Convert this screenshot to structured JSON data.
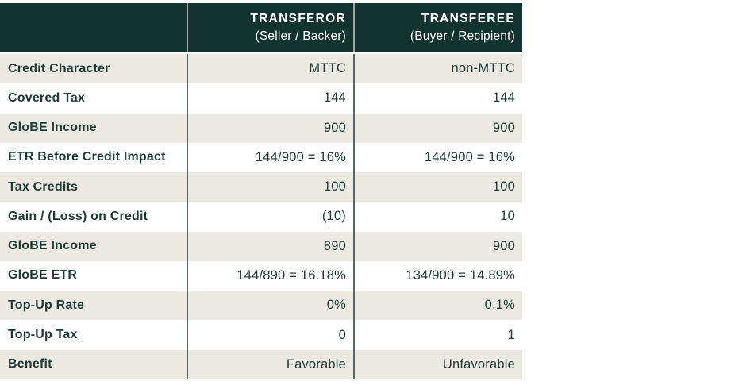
{
  "colors": {
    "header_bg": "#12332E",
    "row_alt_bg": "#ECE9E2",
    "row_bg": "#FFFFFF",
    "text": "#1E3A34",
    "header_text": "#FFFFFF",
    "divider_header": "#9BA8A4",
    "divider_body": "#546964"
  },
  "chart_data": {
    "type": "table",
    "header": {
      "col1": {
        "title": "",
        "subtitle": ""
      },
      "col2": {
        "title": "TRANSFEROR",
        "subtitle": "(Seller / Backer)"
      },
      "col3": {
        "title": "TRANSFEREE",
        "subtitle": "(Buyer / Recipient)"
      }
    },
    "rows": [
      {
        "label": "Credit Character",
        "transferor": "MTTC",
        "transferee": "non-MTTC"
      },
      {
        "label": "Covered Tax",
        "transferor": "144",
        "transferee": "144"
      },
      {
        "label": "GloBE Income",
        "transferor": "900",
        "transferee": "900"
      },
      {
        "label": "ETR Before Credit Impact",
        "transferor": "144/900 = 16%",
        "transferee": "144/900 = 16%"
      },
      {
        "label": "Tax Credits",
        "transferor": "100",
        "transferee": "100"
      },
      {
        "label": "Gain / (Loss) on Credit",
        "transferor": "(10)",
        "transferee": "10"
      },
      {
        "label": "GloBE Income",
        "transferor": "890",
        "transferee": "900"
      },
      {
        "label": "GloBE ETR",
        "transferor": "144/890 = 16.18%",
        "transferee": "134/900 = 14.89%"
      },
      {
        "label": "Top-Up Rate",
        "transferor": "0%",
        "transferee": "0.1%"
      },
      {
        "label": "Top-Up Tax",
        "transferor": "0",
        "transferee": "1"
      },
      {
        "label": "Benefit",
        "transferor": "Favorable",
        "transferee": "Unfavorable"
      }
    ]
  }
}
